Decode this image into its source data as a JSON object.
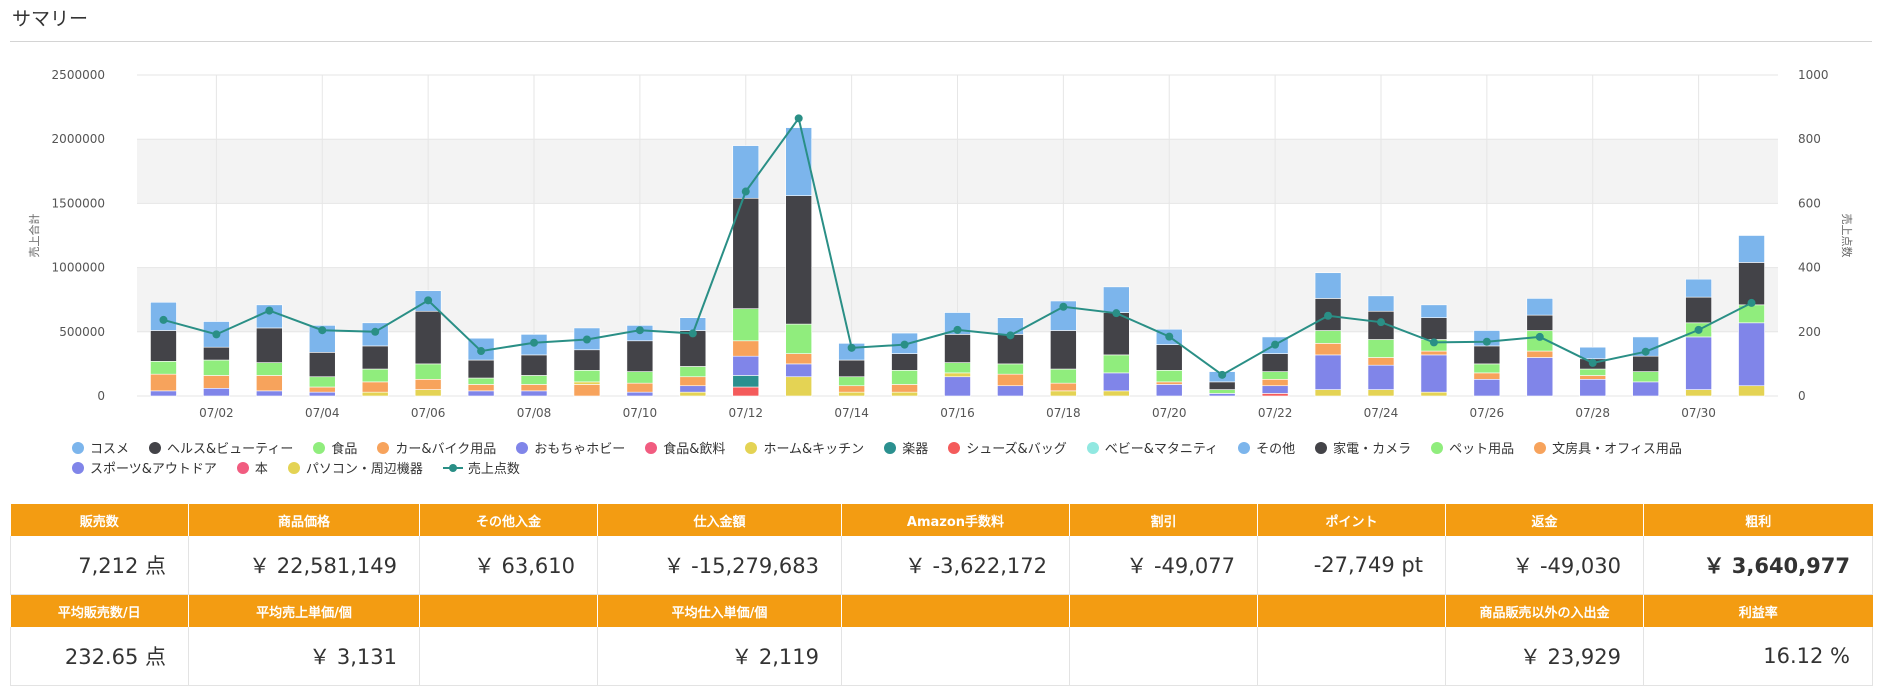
{
  "page": {
    "title": "サマリー"
  },
  "colors": {
    "cosme": "#7cb5ec",
    "health": "#434348",
    "food": "#90ed7d",
    "car": "#f7a35c",
    "toys": "#8085e9",
    "grocery": "#f15c80",
    "home": "#e4d354",
    "instruments": "#2b908f",
    "shoes": "#f45b5b",
    "baby": "#91e8e1",
    "count_line": "#2a8f86"
  },
  "chart_data": {
    "type": "bar",
    "stacked": true,
    "categories": [
      "07/01",
      "07/02",
      "07/03",
      "07/04",
      "07/05",
      "07/06",
      "07/07",
      "07/08",
      "07/09",
      "07/10",
      "07/11",
      "07/12",
      "07/13",
      "07/14",
      "07/15",
      "07/16",
      "07/17",
      "07/18",
      "07/19",
      "07/20",
      "07/21",
      "07/22",
      "07/23",
      "07/24",
      "07/25",
      "07/26",
      "07/27",
      "07/28",
      "07/29",
      "07/30",
      "07/31"
    ],
    "x_tick_labels": [
      "07/02",
      "07/04",
      "07/06",
      "07/08",
      "07/10",
      "07/12",
      "07/14",
      "07/16",
      "07/18",
      "07/20",
      "07/22",
      "07/24",
      "07/26",
      "07/28",
      "07/30"
    ],
    "y_left": {
      "ticks": [
        "0",
        "500000",
        "1000000",
        "1500000",
        "2000000",
        "2500000"
      ],
      "range": [
        0,
        2500000
      ],
      "title": "売上合計"
    },
    "y_right": {
      "ticks": [
        "0",
        "200",
        "400",
        "600",
        "800",
        "1000"
      ],
      "range": [
        0,
        1000
      ],
      "title": "売上点数"
    },
    "grid": true,
    "legend_position": "bottom-left",
    "legend": [
      {
        "name": "コスメ",
        "color": "#7cb5ec",
        "kind": "dot"
      },
      {
        "name": "ヘルス&ビューティー",
        "color": "#434348",
        "kind": "dot"
      },
      {
        "name": "食品",
        "color": "#90ed7d",
        "kind": "dot"
      },
      {
        "name": "カー&バイク用品",
        "color": "#f7a35c",
        "kind": "dot"
      },
      {
        "name": "おもちゃホビー",
        "color": "#8085e9",
        "kind": "dot"
      },
      {
        "name": "食品&飲料",
        "color": "#f15c80",
        "kind": "dot"
      },
      {
        "name": "ホーム&キッチン",
        "color": "#e4d354",
        "kind": "dot"
      },
      {
        "name": "楽器",
        "color": "#2b908f",
        "kind": "dot"
      },
      {
        "name": "シューズ&バッグ",
        "color": "#f45b5b",
        "kind": "dot"
      },
      {
        "name": "ベビー&マタニティ",
        "color": "#91e8e1",
        "kind": "dot"
      },
      {
        "name": "その他",
        "color": "#7cb5ec",
        "kind": "dot"
      },
      {
        "name": "家電・カメラ",
        "color": "#434348",
        "kind": "dot"
      },
      {
        "name": "ペット用品",
        "color": "#90ed7d",
        "kind": "dot"
      },
      {
        "name": "文房具・オフィス用品",
        "color": "#f7a35c",
        "kind": "dot"
      },
      {
        "name": "スポーツ&アウトドア",
        "color": "#8085e9",
        "kind": "dot"
      },
      {
        "name": "本",
        "color": "#f15c80",
        "kind": "dot"
      },
      {
        "name": "パソコン・周辺機器",
        "color": "#e4d354",
        "kind": "dot"
      },
      {
        "name": "売上点数",
        "color": "#2a8f86",
        "kind": "line"
      }
    ],
    "stacks": [
      [
        {
          "c": "#8085e9",
          "v": 40000
        },
        {
          "c": "#f7a35c",
          "v": 130000
        },
        {
          "c": "#90ed7d",
          "v": 100000
        },
        {
          "c": "#434348",
          "v": 240000
        },
        {
          "c": "#7cb5ec",
          "v": 220000
        }
      ],
      [
        {
          "c": "#8085e9",
          "v": 60000
        },
        {
          "c": "#f7a35c",
          "v": 100000
        },
        {
          "c": "#90ed7d",
          "v": 120000
        },
        {
          "c": "#434348",
          "v": 100000
        },
        {
          "c": "#7cb5ec",
          "v": 200000
        }
      ],
      [
        {
          "c": "#8085e9",
          "v": 40000
        },
        {
          "c": "#f7a35c",
          "v": 120000
        },
        {
          "c": "#90ed7d",
          "v": 100000
        },
        {
          "c": "#434348",
          "v": 270000
        },
        {
          "c": "#7cb5ec",
          "v": 180000
        }
      ],
      [
        {
          "c": "#8085e9",
          "v": 30000
        },
        {
          "c": "#f7a35c",
          "v": 40000
        },
        {
          "c": "#90ed7d",
          "v": 80000
        },
        {
          "c": "#434348",
          "v": 190000
        },
        {
          "c": "#7cb5ec",
          "v": 210000
        }
      ],
      [
        {
          "c": "#e4d354",
          "v": 30000
        },
        {
          "c": "#f7a35c",
          "v": 80000
        },
        {
          "c": "#90ed7d",
          "v": 100000
        },
        {
          "c": "#434348",
          "v": 180000
        },
        {
          "c": "#7cb5ec",
          "v": 180000
        }
      ],
      [
        {
          "c": "#e4d354",
          "v": 50000
        },
        {
          "c": "#f7a35c",
          "v": 80000
        },
        {
          "c": "#90ed7d",
          "v": 120000
        },
        {
          "c": "#434348",
          "v": 410000
        },
        {
          "c": "#7cb5ec",
          "v": 160000
        }
      ],
      [
        {
          "c": "#8085e9",
          "v": 40000
        },
        {
          "c": "#f7a35c",
          "v": 50000
        },
        {
          "c": "#90ed7d",
          "v": 50000
        },
        {
          "c": "#434348",
          "v": 140000
        },
        {
          "c": "#7cb5ec",
          "v": 170000
        }
      ],
      [
        {
          "c": "#8085e9",
          "v": 40000
        },
        {
          "c": "#f7a35c",
          "v": 50000
        },
        {
          "c": "#90ed7d",
          "v": 70000
        },
        {
          "c": "#434348",
          "v": 160000
        },
        {
          "c": "#7cb5ec",
          "v": 160000
        }
      ],
      [
        {
          "c": "#f7a35c",
          "v": 90000
        },
        {
          "c": "#e4d354",
          "v": 20000
        },
        {
          "c": "#90ed7d",
          "v": 90000
        },
        {
          "c": "#434348",
          "v": 160000
        },
        {
          "c": "#7cb5ec",
          "v": 170000
        }
      ],
      [
        {
          "c": "#8085e9",
          "v": 30000
        },
        {
          "c": "#f7a35c",
          "v": 70000
        },
        {
          "c": "#90ed7d",
          "v": 90000
        },
        {
          "c": "#434348",
          "v": 240000
        },
        {
          "c": "#7cb5ec",
          "v": 120000
        }
      ],
      [
        {
          "c": "#e4d354",
          "v": 30000
        },
        {
          "c": "#8085e9",
          "v": 50000
        },
        {
          "c": "#f7a35c",
          "v": 70000
        },
        {
          "c": "#90ed7d",
          "v": 80000
        },
        {
          "c": "#434348",
          "v": 280000
        },
        {
          "c": "#7cb5ec",
          "v": 100000
        }
      ],
      [
        {
          "c": "#f45b5b",
          "v": 70000
        },
        {
          "c": "#2b908f",
          "v": 90000
        },
        {
          "c": "#8085e9",
          "v": 150000
        },
        {
          "c": "#f7a35c",
          "v": 120000
        },
        {
          "c": "#90ed7d",
          "v": 250000
        },
        {
          "c": "#434348",
          "v": 860000
        },
        {
          "c": "#7cb5ec",
          "v": 410000
        }
      ],
      [
        {
          "c": "#e4d354",
          "v": 150000
        },
        {
          "c": "#8085e9",
          "v": 100000
        },
        {
          "c": "#f7a35c",
          "v": 80000
        },
        {
          "c": "#90ed7d",
          "v": 230000
        },
        {
          "c": "#434348",
          "v": 1000000
        },
        {
          "c": "#7cb5ec",
          "v": 530000
        }
      ],
      [
        {
          "c": "#e4d354",
          "v": 30000
        },
        {
          "c": "#f7a35c",
          "v": 50000
        },
        {
          "c": "#90ed7d",
          "v": 70000
        },
        {
          "c": "#434348",
          "v": 130000
        },
        {
          "c": "#7cb5ec",
          "v": 130000
        }
      ],
      [
        {
          "c": "#e4d354",
          "v": 30000
        },
        {
          "c": "#f7a35c",
          "v": 60000
        },
        {
          "c": "#90ed7d",
          "v": 110000
        },
        {
          "c": "#434348",
          "v": 130000
        },
        {
          "c": "#7cb5ec",
          "v": 160000
        }
      ],
      [
        {
          "c": "#8085e9",
          "v": 150000
        },
        {
          "c": "#e4d354",
          "v": 30000
        },
        {
          "c": "#90ed7d",
          "v": 80000
        },
        {
          "c": "#434348",
          "v": 220000
        },
        {
          "c": "#7cb5ec",
          "v": 170000
        }
      ],
      [
        {
          "c": "#8085e9",
          "v": 80000
        },
        {
          "c": "#f7a35c",
          "v": 90000
        },
        {
          "c": "#90ed7d",
          "v": 80000
        },
        {
          "c": "#434348",
          "v": 230000
        },
        {
          "c": "#7cb5ec",
          "v": 130000
        }
      ],
      [
        {
          "c": "#e4d354",
          "v": 40000
        },
        {
          "c": "#f7a35c",
          "v": 60000
        },
        {
          "c": "#90ed7d",
          "v": 110000
        },
        {
          "c": "#434348",
          "v": 300000
        },
        {
          "c": "#7cb5ec",
          "v": 230000
        }
      ],
      [
        {
          "c": "#e4d354",
          "v": 40000
        },
        {
          "c": "#8085e9",
          "v": 140000
        },
        {
          "c": "#90ed7d",
          "v": 140000
        },
        {
          "c": "#434348",
          "v": 330000
        },
        {
          "c": "#7cb5ec",
          "v": 200000
        }
      ],
      [
        {
          "c": "#8085e9",
          "v": 90000
        },
        {
          "c": "#f7a35c",
          "v": 20000
        },
        {
          "c": "#90ed7d",
          "v": 90000
        },
        {
          "c": "#434348",
          "v": 200000
        },
        {
          "c": "#7cb5ec",
          "v": 120000
        }
      ],
      [
        {
          "c": "#8085e9",
          "v": 20000
        },
        {
          "c": "#90ed7d",
          "v": 30000
        },
        {
          "c": "#434348",
          "v": 60000
        },
        {
          "c": "#7cb5ec",
          "v": 80000
        }
      ],
      [
        {
          "c": "#f45b5b",
          "v": 20000
        },
        {
          "c": "#8085e9",
          "v": 60000
        },
        {
          "c": "#f7a35c",
          "v": 50000
        },
        {
          "c": "#90ed7d",
          "v": 60000
        },
        {
          "c": "#434348",
          "v": 140000
        },
        {
          "c": "#7cb5ec",
          "v": 130000
        }
      ],
      [
        {
          "c": "#e4d354",
          "v": 50000
        },
        {
          "c": "#8085e9",
          "v": 270000
        },
        {
          "c": "#f7a35c",
          "v": 90000
        },
        {
          "c": "#90ed7d",
          "v": 100000
        },
        {
          "c": "#434348",
          "v": 250000
        },
        {
          "c": "#7cb5ec",
          "v": 200000
        }
      ],
      [
        {
          "c": "#e4d354",
          "v": 50000
        },
        {
          "c": "#8085e9",
          "v": 190000
        },
        {
          "c": "#f7a35c",
          "v": 60000
        },
        {
          "c": "#90ed7d",
          "v": 140000
        },
        {
          "c": "#434348",
          "v": 220000
        },
        {
          "c": "#7cb5ec",
          "v": 120000
        }
      ],
      [
        {
          "c": "#e4d354",
          "v": 30000
        },
        {
          "c": "#8085e9",
          "v": 290000
        },
        {
          "c": "#f7a35c",
          "v": 30000
        },
        {
          "c": "#90ed7d",
          "v": 90000
        },
        {
          "c": "#434348",
          "v": 170000
        },
        {
          "c": "#7cb5ec",
          "v": 100000
        }
      ],
      [
        {
          "c": "#8085e9",
          "v": 130000
        },
        {
          "c": "#f7a35c",
          "v": 50000
        },
        {
          "c": "#90ed7d",
          "v": 70000
        },
        {
          "c": "#434348",
          "v": 140000
        },
        {
          "c": "#7cb5ec",
          "v": 120000
        }
      ],
      [
        {
          "c": "#8085e9",
          "v": 300000
        },
        {
          "c": "#f7a35c",
          "v": 50000
        },
        {
          "c": "#90ed7d",
          "v": 160000
        },
        {
          "c": "#434348",
          "v": 120000
        },
        {
          "c": "#7cb5ec",
          "v": 130000
        }
      ],
      [
        {
          "c": "#8085e9",
          "v": 130000
        },
        {
          "c": "#f7a35c",
          "v": 30000
        },
        {
          "c": "#90ed7d",
          "v": 50000
        },
        {
          "c": "#434348",
          "v": 80000
        },
        {
          "c": "#7cb5ec",
          "v": 90000
        }
      ],
      [
        {
          "c": "#8085e9",
          "v": 110000
        },
        {
          "c": "#90ed7d",
          "v": 80000
        },
        {
          "c": "#434348",
          "v": 120000
        },
        {
          "c": "#7cb5ec",
          "v": 150000
        }
      ],
      [
        {
          "c": "#e4d354",
          "v": 50000
        },
        {
          "c": "#8085e9",
          "v": 410000
        },
        {
          "c": "#90ed7d",
          "v": 110000
        },
        {
          "c": "#434348",
          "v": 200000
        },
        {
          "c": "#7cb5ec",
          "v": 140000
        }
      ],
      [
        {
          "c": "#e4d354",
          "v": 80000
        },
        {
          "c": "#8085e9",
          "v": 490000
        },
        {
          "c": "#90ed7d",
          "v": 140000
        },
        {
          "c": "#434348",
          "v": 330000
        },
        {
          "c": "#7cb5ec",
          "v": 210000
        }
      ]
    ],
    "count_series": {
      "name": "売上点数",
      "values": [
        237,
        192,
        266,
        205,
        200,
        298,
        140,
        166,
        176,
        205,
        195,
        637,
        865,
        150,
        160,
        206,
        189,
        278,
        258,
        185,
        66,
        160,
        250,
        230,
        167,
        169,
        184,
        103,
        138,
        206,
        290
      ]
    }
  },
  "summary": {
    "headers1": [
      "販売数",
      "商品価格",
      "その他入金",
      "仕入金額",
      "Amazon手数料",
      "割引",
      "ポイント",
      "返金",
      "粗利"
    ],
    "row1": [
      "7,212 点",
      "￥ 22,581,149",
      "￥ 63,610",
      "￥ -15,279,683",
      "￥ -3,622,172",
      "￥ -49,077",
      "-27,749 pt",
      "￥ -49,030",
      "￥ 3,640,977"
    ],
    "headers2": [
      "平均販売数/日",
      "平均売上単価/個",
      "",
      "平均仕入単価/個",
      "",
      "",
      "",
      "商品販売以外の入出金",
      "利益率"
    ],
    "row2": [
      "232.65 点",
      "￥ 3,131",
      "",
      "￥ 2,119",
      "",
      "",
      "",
      "￥ 23,929",
      "16.12 %"
    ]
  }
}
